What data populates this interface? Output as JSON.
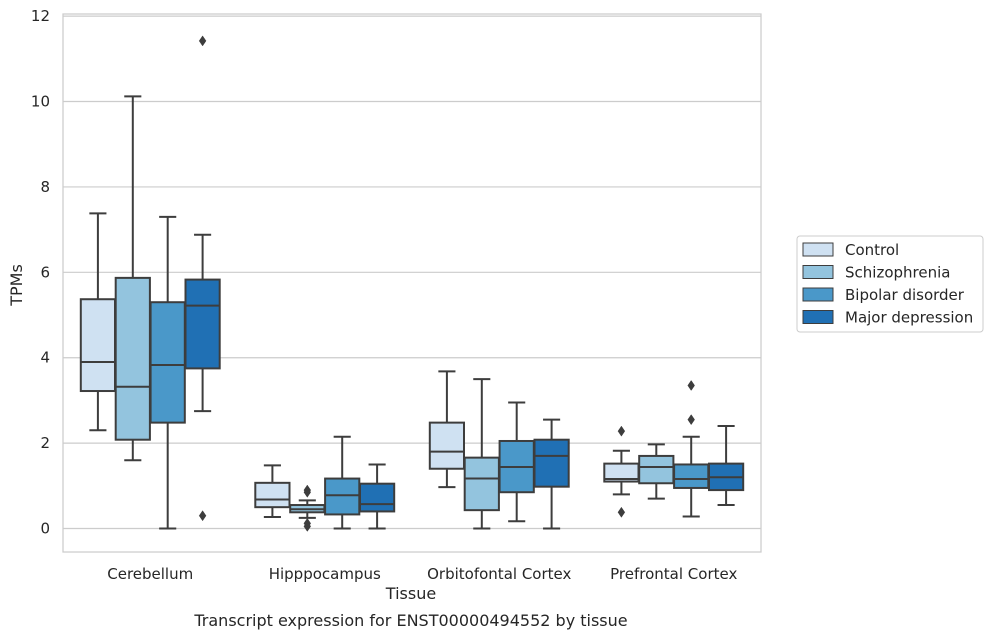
{
  "chart_data": {
    "type": "boxplot",
    "caption": "Transcript expression for ENST00000494552 by tissue",
    "xlabel": "Tissue",
    "ylabel": "TPMs",
    "ylim": [
      -0.55,
      12.05
    ],
    "yticks": [
      0,
      2,
      4,
      6,
      8,
      10,
      12
    ],
    "grid": "horizontal",
    "legend_position": "right",
    "categories": [
      "Cerebellum",
      "Hipppocampus",
      "Orbitofontal Cortex",
      "Prefrontal Cortex"
    ],
    "series": [
      {
        "name": "Control",
        "color": "#cfe1f2",
        "boxes": [
          {
            "whislo": 2.3,
            "q1": 3.22,
            "med": 3.9,
            "q3": 5.37,
            "whishi": 7.38,
            "fliers": []
          },
          {
            "whislo": 0.27,
            "q1": 0.5,
            "med": 0.68,
            "q3": 1.07,
            "whishi": 1.48,
            "fliers": []
          },
          {
            "whislo": 0.97,
            "q1": 1.4,
            "med": 1.8,
            "q3": 2.48,
            "whishi": 3.68,
            "fliers": []
          },
          {
            "whislo": 0.8,
            "q1": 1.1,
            "med": 1.16,
            "q3": 1.52,
            "whishi": 1.82,
            "fliers": [
              2.28,
              0.38
            ]
          }
        ]
      },
      {
        "name": "Schizophrenia",
        "color": "#93c4de",
        "boxes": [
          {
            "whislo": 1.6,
            "q1": 2.08,
            "med": 3.32,
            "q3": 5.87,
            "whishi": 10.12,
            "fliers": []
          },
          {
            "whislo": 0.25,
            "q1": 0.38,
            "med": 0.45,
            "q3": 0.55,
            "whishi": 0.66,
            "fliers": [
              0.9,
              0.85,
              0.12,
              0.05
            ]
          },
          {
            "whislo": 0.0,
            "q1": 0.43,
            "med": 1.17,
            "q3": 1.66,
            "whishi": 3.5,
            "fliers": []
          },
          {
            "whislo": 0.7,
            "q1": 1.06,
            "med": 1.44,
            "q3": 1.7,
            "whishi": 1.97,
            "fliers": []
          }
        ]
      },
      {
        "name": "Bipolar disorder",
        "color": "#4a98c9",
        "boxes": [
          {
            "whislo": 0.0,
            "q1": 2.48,
            "med": 3.83,
            "q3": 5.3,
            "whishi": 7.3,
            "fliers": []
          },
          {
            "whislo": 0.0,
            "q1": 0.33,
            "med": 0.78,
            "q3": 1.17,
            "whishi": 2.15,
            "fliers": []
          },
          {
            "whislo": 0.17,
            "q1": 0.85,
            "med": 1.44,
            "q3": 2.05,
            "whishi": 2.95,
            "fliers": []
          },
          {
            "whislo": 0.28,
            "q1": 0.95,
            "med": 1.16,
            "q3": 1.5,
            "whishi": 2.15,
            "fliers": [
              3.35,
              2.55
            ]
          }
        ]
      },
      {
        "name": "Major depression",
        "color": "#2070b4",
        "boxes": [
          {
            "whislo": 2.75,
            "q1": 3.75,
            "med": 5.22,
            "q3": 5.83,
            "whishi": 6.88,
            "fliers": [
              11.42,
              0.3
            ]
          },
          {
            "whislo": 0.0,
            "q1": 0.4,
            "med": 0.57,
            "q3": 1.05,
            "whishi": 1.5,
            "fliers": []
          },
          {
            "whislo": 0.0,
            "q1": 0.98,
            "med": 1.7,
            "q3": 2.08,
            "whishi": 2.55,
            "fliers": []
          },
          {
            "whislo": 0.55,
            "q1": 0.9,
            "med": 1.2,
            "q3": 1.52,
            "whishi": 2.4,
            "fliers": []
          }
        ]
      }
    ]
  }
}
